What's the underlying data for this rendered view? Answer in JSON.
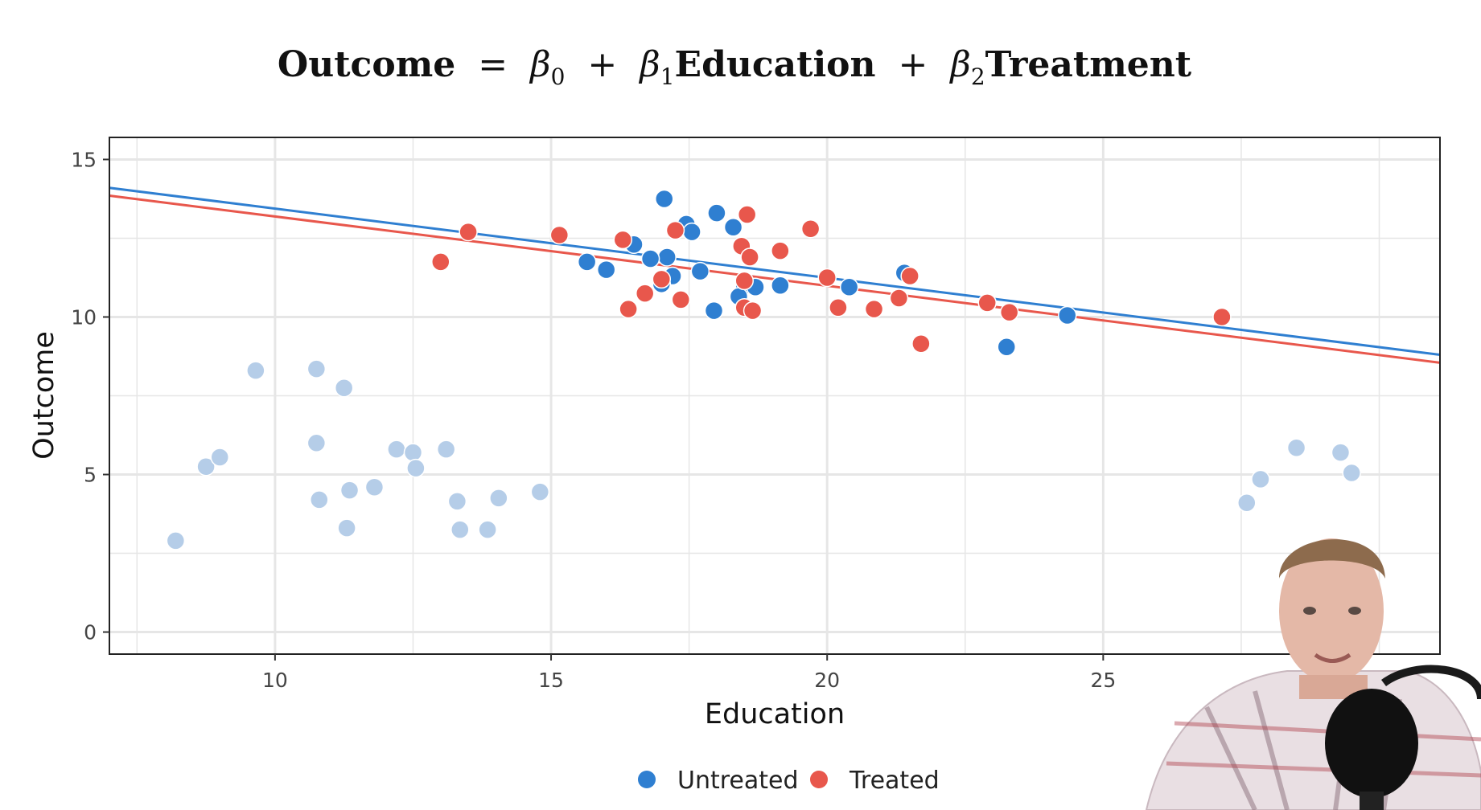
{
  "equation": {
    "lhs": "Outcome",
    "eq": "=",
    "beta0": "β",
    "sub0": "0",
    "plus1": "+",
    "beta1": "β",
    "sub1": "1",
    "var1": "Education",
    "plus2": "+",
    "beta2": "β",
    "sub2": "2",
    "var2": "Treatment"
  },
  "colors": {
    "untreated": "#2f7fd1",
    "treated": "#e8574c",
    "faded": "#b5cde8",
    "grid": "#e6e6e6",
    "panel_border": "#222222"
  },
  "presenter_video": "webcam overlay of presenter in bottom-right corner",
  "chart_data": {
    "type": "scatter",
    "xlabel": "Education",
    "ylabel": "Outcome",
    "xlim": [
      7,
      31.1
    ],
    "ylim": [
      -0.7,
      15.7
    ],
    "x_ticks": [
      10,
      15,
      20,
      25
    ],
    "x_tick_labels": [
      "10",
      "15",
      "20",
      "25"
    ],
    "y_ticks": [
      0,
      5,
      10,
      15
    ],
    "y_tick_labels": [
      "0",
      "5",
      "10",
      "15"
    ],
    "grid": true,
    "legend": {
      "position": "bottom",
      "entries": [
        {
          "label": "Untreated",
          "color": "#2f7fd1"
        },
        {
          "label": "Treated",
          "color": "#e8574c"
        }
      ]
    },
    "lines": [
      {
        "group": "Untreated",
        "color": "#2f7fd1",
        "x": [
          7,
          31.1
        ],
        "y": [
          14.1,
          8.8
        ]
      },
      {
        "group": "Treated",
        "color": "#e8574c",
        "x": [
          7,
          31.1
        ],
        "y": [
          13.85,
          8.55
        ]
      }
    ],
    "series": [
      {
        "name": "Untreated",
        "color": "#2f7fd1",
        "points": [
          [
            17.05,
            13.75
          ],
          [
            18.0,
            13.3
          ],
          [
            17.45,
            12.95
          ],
          [
            18.3,
            12.85
          ],
          [
            17.55,
            12.7
          ],
          [
            16.5,
            12.3
          ],
          [
            17.1,
            11.9
          ],
          [
            16.8,
            11.85
          ],
          [
            15.65,
            11.75
          ],
          [
            16.0,
            11.5
          ],
          [
            17.7,
            11.45
          ],
          [
            21.4,
            11.4
          ],
          [
            17.2,
            11.3
          ],
          [
            17.0,
            11.05
          ],
          [
            18.5,
            11.0
          ],
          [
            18.7,
            10.95
          ],
          [
            19.15,
            11.0
          ],
          [
            20.4,
            10.95
          ],
          [
            18.4,
            10.65
          ],
          [
            17.95,
            10.2
          ],
          [
            24.35,
            10.05
          ],
          [
            23.25,
            9.05
          ]
        ]
      },
      {
        "name": "Treated",
        "color": "#e8574c",
        "points": [
          [
            13.5,
            12.7
          ],
          [
            13.0,
            11.75
          ],
          [
            15.15,
            12.6
          ],
          [
            16.3,
            12.45
          ],
          [
            17.25,
            12.75
          ],
          [
            18.55,
            13.25
          ],
          [
            19.7,
            12.8
          ],
          [
            18.45,
            12.25
          ],
          [
            19.15,
            12.1
          ],
          [
            18.6,
            11.9
          ],
          [
            17.0,
            11.2
          ],
          [
            18.5,
            11.15
          ],
          [
            20.0,
            11.25
          ],
          [
            21.5,
            11.3
          ],
          [
            16.7,
            10.75
          ],
          [
            17.35,
            10.55
          ],
          [
            16.4,
            10.25
          ],
          [
            18.5,
            10.3
          ],
          [
            18.65,
            10.2
          ],
          [
            20.2,
            10.3
          ],
          [
            20.85,
            10.25
          ],
          [
            21.3,
            10.6
          ],
          [
            22.9,
            10.45
          ],
          [
            23.3,
            10.15
          ],
          [
            21.7,
            9.15
          ],
          [
            27.15,
            10.0
          ]
        ]
      },
      {
        "name": "faded-background",
        "color": "#b5cde8",
        "points": [
          [
            9.65,
            8.3
          ],
          [
            10.75,
            8.35
          ],
          [
            11.25,
            7.75
          ],
          [
            10.75,
            6.0
          ],
          [
            10.8,
            4.2
          ],
          [
            8.75,
            5.25
          ],
          [
            9.0,
            5.55
          ],
          [
            8.2,
            2.9
          ],
          [
            11.35,
            4.5
          ],
          [
            11.8,
            4.6
          ],
          [
            11.3,
            3.3
          ],
          [
            12.2,
            5.8
          ],
          [
            12.5,
            5.7
          ],
          [
            12.55,
            5.2
          ],
          [
            13.1,
            5.8
          ],
          [
            13.3,
            4.15
          ],
          [
            13.35,
            3.25
          ],
          [
            13.85,
            3.25
          ],
          [
            14.05,
            4.25
          ],
          [
            14.8,
            4.45
          ],
          [
            27.6,
            4.1
          ],
          [
            27.85,
            4.85
          ],
          [
            28.5,
            5.85
          ],
          [
            29.3,
            5.7
          ],
          [
            29.5,
            5.05
          ]
        ]
      }
    ]
  }
}
